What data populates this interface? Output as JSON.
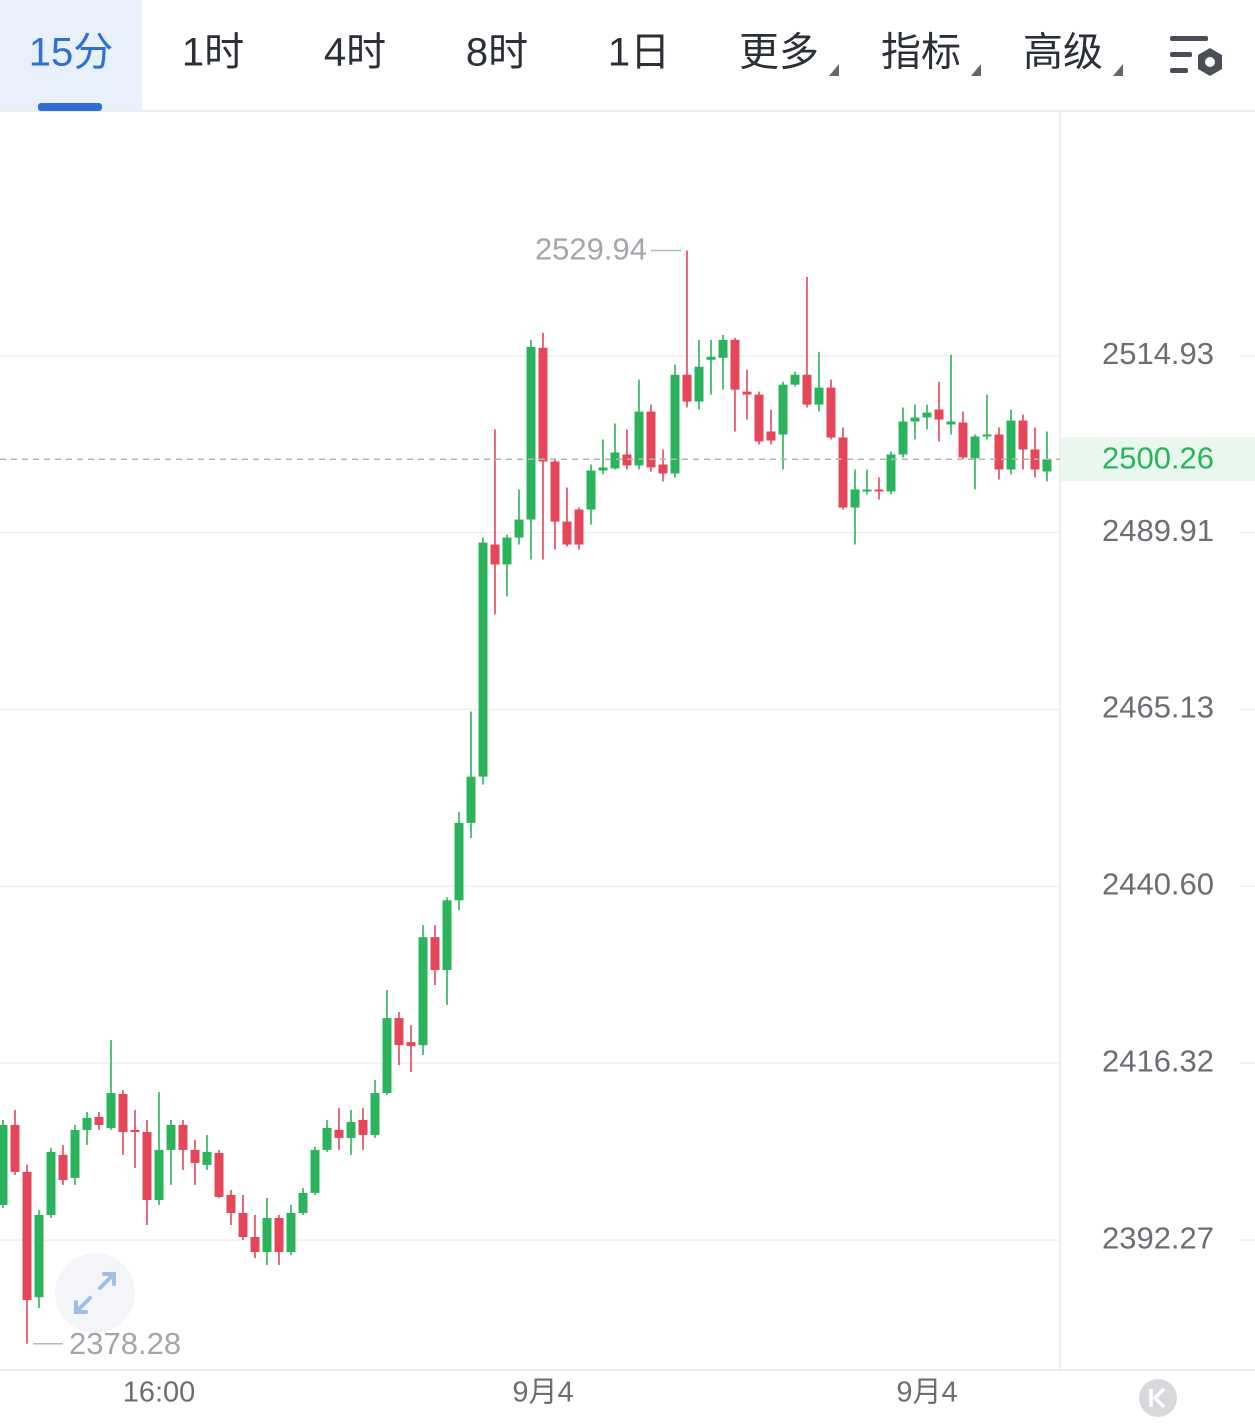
{
  "tabs": [
    {
      "label": "15分",
      "active": true,
      "dropdown": false
    },
    {
      "label": "1时",
      "active": false,
      "dropdown": false
    },
    {
      "label": "4时",
      "active": false,
      "dropdown": false
    },
    {
      "label": "8时",
      "active": false,
      "dropdown": false
    },
    {
      "label": "1日",
      "active": false,
      "dropdown": false
    },
    {
      "label": "更多",
      "active": false,
      "dropdown": true
    },
    {
      "label": "指标",
      "active": false,
      "dropdown": true
    },
    {
      "label": "高级",
      "active": false,
      "dropdown": true
    }
  ],
  "chart_data": {
    "type": "candlestick",
    "log_scale": true,
    "grid": true,
    "up_color": "#2bb45c",
    "down_color": "#e4465a",
    "categories": [
      null,
      null,
      null,
      null,
      null,
      null,
      null,
      null,
      null,
      null,
      null,
      null,
      null,
      "16:00",
      null,
      null,
      null,
      null,
      null,
      null,
      null,
      null,
      null,
      null,
      null,
      null,
      null,
      null,
      null,
      null,
      null,
      null,
      null,
      null,
      null,
      null,
      null,
      null,
      null,
      null,
      null,
      null,
      null,
      null,
      null,
      "9月4",
      null,
      null,
      null,
      null,
      null,
      null,
      null,
      null,
      null,
      null,
      null,
      null,
      null,
      null,
      null,
      null,
      null,
      null,
      null,
      null,
      null,
      null,
      null,
      null,
      null,
      null,
      null,
      null,
      null,
      null,
      null,
      "9月4",
      null,
      null,
      null,
      null,
      null,
      null,
      null,
      null,
      null,
      null
    ],
    "open": [
      2397.03,
      2407.9,
      2401.51,
      2384.56,
      2395.67,
      2403.82,
      2400.69,
      2407.22,
      2408.98,
      2407.49,
      2412.11,
      2407.22,
      2406.94,
      2397.7,
      2404.5,
      2407.9,
      2404.5,
      2402.46,
      2404.09,
      2398.38,
      2395.94,
      2392.68,
      2390.65,
      2395.26,
      2390.65,
      2395.94,
      2398.66,
      2404.5,
      2407.22,
      2406.13,
      2408.57,
      2406.54,
      2412.24,
      2422.49,
      2419.2,
      2418.79,
      2433.6,
      2429.08,
      2438.68,
      2449.38,
      2455.79,
      2488.23,
      2485.43,
      2489.21,
      2491.75,
      2516.07,
      2499.95,
      2491.46,
      2493.16,
      2493.16,
      2498.67,
      2498.96,
      2500.94,
      2499.38,
      2507.01,
      2499.52,
      2498.25,
      2512.24,
      2508.43,
      2514.36,
      2514.65,
      2517.2,
      2509.84,
      2509.42,
      2504.19,
      2503.76,
      2510.83,
      2512.24,
      2508.0,
      2510.41,
      2503.34,
      2493.44,
      2495.71,
      2495.99,
      2495.71,
      2500.94,
      2505.6,
      2506.17,
      2507.3,
      2505.18,
      2505.46,
      2500.4,
      2503.48,
      2503.76,
      2498.81,
      2505.74,
      2501.64,
      2498.53
    ],
    "high": [
      2408.57,
      2409.93,
      2402.46,
      2396.35,
      2404.77,
      2405.18,
      2407.9,
      2409.66,
      2409.66,
      2419.47,
      2412.65,
      2409.93,
      2408.57,
      2412.38,
      2408.57,
      2408.57,
      2405.86,
      2406.54,
      2404.5,
      2399.06,
      2398.38,
      2395.67,
      2397.98,
      2395.67,
      2397.03,
      2399.33,
      2404.91,
      2408.57,
      2410.21,
      2409.93,
      2410.21,
      2414.01,
      2426.33,
      2423.32,
      2421.53,
      2435.25,
      2435.25,
      2439.09,
      2450.91,
      2464.85,
      2489.21,
      2504.47,
      2489.63,
      2495.99,
      2517.2,
      2518.2,
      2500.4,
      2496.27,
      2493.44,
      2499.52,
      2503.06,
      2505.32,
      2504.47,
      2511.54,
      2508.0,
      2501.64,
      2513.66,
      2529.94,
      2517.2,
      2517.2,
      2517.91,
      2517.49,
      2512.95,
      2509.84,
      2507.3,
      2511.25,
      2512.67,
      2526.16,
      2515.5,
      2511.54,
      2504.75,
      2498.81,
      2498.81,
      2497.68,
      2501.36,
      2507.58,
      2508.0,
      2508.0,
      2511.25,
      2515.07,
      2507.01,
      2503.76,
      2509.42,
      2504.75,
      2507.3,
      2506.59,
      2504.75,
      2504.19
    ],
    "low": [
      2396.62,
      2401.1,
      2378.28,
      2383.08,
      2395.26,
      2399.74,
      2399.74,
      2405.18,
      2407.22,
      2407.22,
      2403.82,
      2402.05,
      2394.31,
      2397.03,
      2399.74,
      2401.78,
      2399.74,
      2401.78,
      2397.98,
      2394.31,
      2392.27,
      2389.84,
      2388.89,
      2388.89,
      2390.24,
      2395.67,
      2398.38,
      2404.23,
      2404.5,
      2403.82,
      2404.5,
      2406.13,
      2411.97,
      2416.05,
      2415.1,
      2417.42,
      2427.02,
      2424.28,
      2437.31,
      2447.29,
      2454.68,
      2478.43,
      2480.95,
      2488.23,
      2486.13,
      2486.13,
      2487.53,
      2487.95,
      2487.53,
      2491.04,
      2498.11,
      2498.81,
      2498.81,
      2498.81,
      2498.53,
      2497.12,
      2497.68,
      2507.58,
      2507.3,
      2509.42,
      2510.12,
      2504.19,
      2505.88,
      2502.35,
      2502.35,
      2498.81,
      2510.55,
      2507.58,
      2507.01,
      2503.06,
      2493.16,
      2488.23,
      2495.28,
      2494.57,
      2495.28,
      2500.51,
      2503.06,
      2504.47,
      2502.77,
      2503.76,
      2500.3,
      2495.99,
      2503.06,
      2497.4,
      2498.11,
      2498.81,
      2497.68,
      2497.12
    ],
    "close": [
      2407.9,
      2401.51,
      2384.16,
      2395.67,
      2404.23,
      2400.42,
      2407.22,
      2408.85,
      2407.9,
      2412.24,
      2406.94,
      2406.94,
      2397.7,
      2404.5,
      2407.9,
      2404.5,
      2402.73,
      2404.23,
      2398.11,
      2395.94,
      2392.68,
      2390.65,
      2395.26,
      2390.65,
      2395.94,
      2398.66,
      2404.5,
      2407.49,
      2406.13,
      2408.3,
      2406.54,
      2412.24,
      2422.49,
      2418.79,
      2418.65,
      2433.6,
      2429.08,
      2438.68,
      2449.38,
      2455.79,
      2488.51,
      2485.43,
      2489.21,
      2491.75,
      2516.21,
      2499.95,
      2491.46,
      2488.23,
      2488.23,
      2498.67,
      2499.1,
      2501.22,
      2499.38,
      2507.01,
      2499.1,
      2498.25,
      2512.24,
      2508.43,
      2513.38,
      2514.79,
      2517.2,
      2510.12,
      2509.42,
      2502.77,
      2502.91,
      2510.83,
      2512.24,
      2508.0,
      2510.41,
      2503.34,
      2493.44,
      2495.99,
      2495.99,
      2495.71,
      2500.94,
      2505.6,
      2506.17,
      2506.87,
      2505.88,
      2505.6,
      2500.51,
      2503.48,
      2503.76,
      2498.81,
      2505.74,
      2501.64,
      2498.81,
      2500.26
    ],
    "ylim": [
      2374.76,
      2549.84
    ],
    "yticks": [
      2392.27,
      2416.32,
      {
        "value": 2440.6,
        "label": "2440.60"
      },
      2465.13,
      2489.91,
      2514.93
    ]
  }
}
